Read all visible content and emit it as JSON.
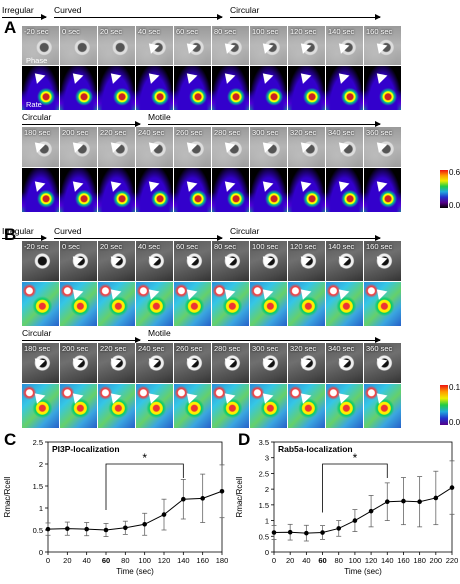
{
  "panel_A": {
    "letter": "A",
    "row1_phases": [
      "Irregular",
      "Curved",
      "Circular"
    ],
    "row1_times": [
      "-20 sec",
      "0 sec",
      "20 sec",
      "40 sec",
      "60 sec",
      "80 sec",
      "100 sec",
      "120 sec",
      "140 sec",
      "160 sec"
    ],
    "row1_channel_top": "Phase",
    "row1_channel_bottom": "Rate",
    "row2_phases": [
      "Circular",
      "Motile"
    ],
    "row2_times": [
      "180 sec",
      "200 sec",
      "220 sec",
      "240 sec",
      "260 sec",
      "280 sec",
      "300 sec",
      "320 sec",
      "340 sec",
      "360 sec"
    ],
    "colorbar_max": "0.6",
    "colorbar_min": "0.0"
  },
  "panel_B": {
    "letter": "B",
    "row1_phases": [
      "Irregular",
      "Curved",
      "Circular"
    ],
    "row1_times": [
      "-20 sec",
      "0 sec",
      "20 sec",
      "40 sec",
      "60 sec",
      "80 sec",
      "100 sec",
      "120 sec",
      "140 sec",
      "160 sec"
    ],
    "row2_phases": [
      "Circular",
      "Motile"
    ],
    "row2_times": [
      "180 sec",
      "200 sec",
      "220 sec",
      "240 sec",
      "260 sec",
      "280 sec",
      "300 sec",
      "320 sec",
      "340 sec",
      "360 sec"
    ],
    "colorbar_max": "0.1",
    "colorbar_min": "0.0"
  },
  "chart_data": [
    {
      "panel": "C",
      "type": "line",
      "title": "PI3P-localization",
      "xlabel": "Time (sec)",
      "ylabel": "Rmac/Rcell",
      "x": [
        0,
        20,
        40,
        60,
        80,
        100,
        120,
        140,
        160,
        180
      ],
      "y": [
        0.52,
        0.53,
        0.52,
        0.5,
        0.55,
        0.63,
        0.85,
        1.2,
        1.22,
        1.38
      ],
      "err": [
        0.14,
        0.15,
        0.15,
        0.15,
        0.15,
        0.25,
        0.35,
        0.45,
        0.55,
        0.6
      ],
      "xlim": [
        0,
        180
      ],
      "ylim": [
        0,
        2.5
      ],
      "xticks": [
        "0",
        "20",
        "40",
        "60",
        "80",
        "100",
        "120",
        "140",
        "160",
        "180"
      ],
      "yticks": [
        "0",
        "0.5",
        "1",
        "1.5",
        "2",
        "2.5"
      ],
      "annotation": "*",
      "bracket_from": 60,
      "bracket_to": 140
    },
    {
      "panel": "D",
      "type": "line",
      "title": "Rab5a-localization",
      "xlabel": "Time (sec)",
      "ylabel": "Rmac/Rcell",
      "x": [
        0,
        20,
        40,
        60,
        80,
        100,
        120,
        140,
        160,
        180,
        200,
        220
      ],
      "y": [
        0.62,
        0.63,
        0.6,
        0.62,
        0.75,
        1.0,
        1.3,
        1.6,
        1.62,
        1.6,
        1.72,
        2.05
      ],
      "err": [
        0.22,
        0.25,
        0.25,
        0.22,
        0.25,
        0.35,
        0.5,
        0.6,
        0.75,
        0.8,
        0.85,
        0.85
      ],
      "xlim": [
        0,
        220
      ],
      "ylim": [
        0,
        3.5
      ],
      "xticks": [
        "0",
        "20",
        "40",
        "60",
        "80",
        "100",
        "120",
        "140",
        "160",
        "180",
        "200",
        "220"
      ],
      "yticks": [
        "0",
        "0.5",
        "1",
        "1.5",
        "2",
        "2.5",
        "3",
        "3.5"
      ],
      "annotation": "*",
      "bracket_from": 60,
      "bracket_to": 140
    }
  ]
}
